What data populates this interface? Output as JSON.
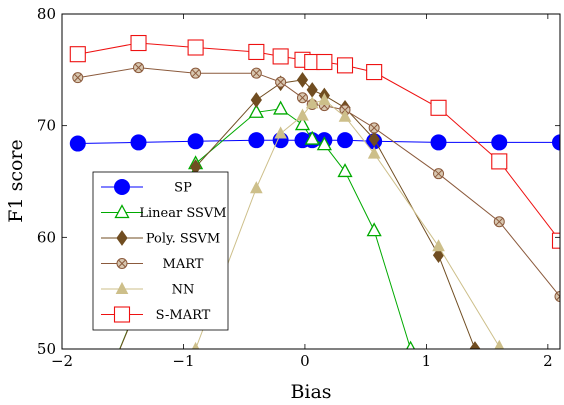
{
  "chart_data": {
    "type": "line",
    "xlabel": "Bias",
    "ylabel": "F1 score",
    "xlim": [
      -2,
      2.1
    ],
    "ylim": [
      50,
      80
    ],
    "x_ticks": [
      -2,
      -1,
      0,
      1,
      2
    ],
    "x_tick_labels": [
      "−2",
      "−1",
      "0",
      "1",
      "2"
    ],
    "y_ticks": [
      50,
      60,
      70,
      80
    ],
    "y_tick_labels": [
      "50",
      "60",
      "70",
      "80"
    ],
    "grid": false,
    "legend_position": "bottom-left",
    "series": [
      {
        "name": "SP",
        "color": "#0000ff",
        "marker": "filled-circle",
        "x": [
          -1.87,
          -1.37,
          -0.9,
          -0.4,
          -0.2,
          -0.02,
          0.06,
          0.16,
          0.33,
          0.57,
          1.1,
          1.6,
          2.1
        ],
        "y": [
          68.4,
          68.5,
          68.6,
          68.7,
          68.7,
          68.7,
          68.7,
          68.7,
          68.7,
          68.6,
          68.5,
          68.5,
          68.5
        ]
      },
      {
        "name": "Linear SSVM",
        "color": "#00aa00",
        "marker": "open-triangle",
        "x": [
          -1.6,
          -0.9,
          -0.4,
          -0.2,
          -0.02,
          0.06,
          0.16,
          0.33,
          0.57,
          0.87
        ],
        "y": [
          48,
          66.6,
          71.2,
          71.5,
          70.1,
          68.8,
          68.3,
          65.9,
          60.6,
          50
        ]
      },
      {
        "name": "Poly. SSVM",
        "color": "#704d21",
        "marker": "filled-diamond",
        "x": [
          -1.6,
          -0.9,
          -0.4,
          -0.2,
          -0.02,
          0.06,
          0.16,
          0.33,
          0.57,
          1.1,
          1.4
        ],
        "y": [
          48,
          66.3,
          72.3,
          73.8,
          74.1,
          73.2,
          72.7,
          71.6,
          68.8,
          58.4,
          50
        ]
      },
      {
        "name": "MART",
        "color": "#8b5a3c",
        "marker": "crossed-circle",
        "x": [
          -1.87,
          -1.37,
          -0.9,
          -0.4,
          -0.2,
          -0.02,
          0.06,
          0.16,
          0.33,
          0.57,
          1.1,
          1.6,
          2.1
        ],
        "y": [
          74.3,
          75.2,
          74.7,
          74.7,
          73.9,
          72.5,
          71.9,
          71.8,
          71.4,
          69.8,
          65.7,
          61.4,
          54.7
        ]
      },
      {
        "name": "NN",
        "color": "#cdbf8a",
        "marker": "filled-triangle",
        "x": [
          -0.9,
          -0.4,
          -0.2,
          -0.02,
          0.06,
          0.16,
          0.33,
          0.57,
          1.1,
          1.6
        ],
        "y": [
          50,
          64.4,
          69.3,
          70.9,
          72,
          72.3,
          70.8,
          67.5,
          59.2,
          50.2
        ]
      },
      {
        "name": "S-MART",
        "color": "#ee1111",
        "marker": "open-square",
        "x": [
          -1.87,
          -1.37,
          -0.9,
          -0.4,
          -0.2,
          -0.02,
          0.06,
          0.16,
          0.33,
          0.57,
          1.1,
          1.6,
          2.1
        ],
        "y": [
          76.4,
          77.4,
          77.0,
          76.6,
          76.2,
          75.9,
          75.7,
          75.7,
          75.4,
          74.8,
          71.6,
          66.8,
          59.7
        ]
      }
    ]
  }
}
